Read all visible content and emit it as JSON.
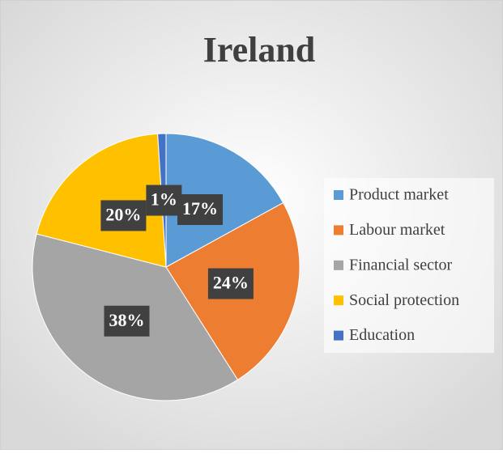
{
  "chart_data": {
    "type": "pie",
    "title": "Ireland",
    "categories": [
      "Product market",
      "Labour market",
      "Financial sector",
      "Social protection",
      "Education"
    ],
    "values": [
      17,
      24,
      38,
      20,
      1
    ],
    "value_labels": [
      "17%",
      "24%",
      "38%",
      "20%",
      "1%"
    ],
    "colors": [
      "#5b9bd5",
      "#ed7d31",
      "#a5a5a5",
      "#ffc000",
      "#4472c4"
    ],
    "legend": "right"
  }
}
